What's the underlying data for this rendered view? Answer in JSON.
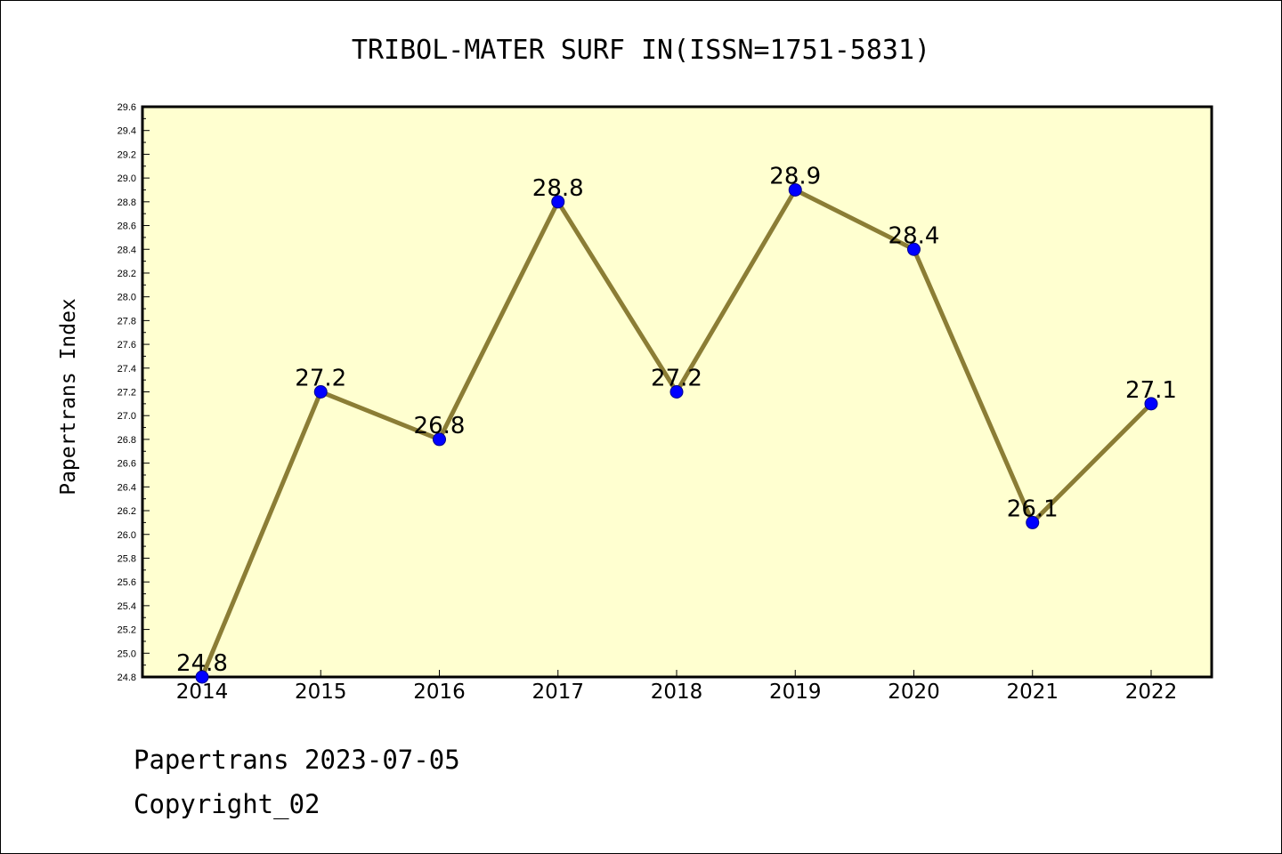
{
  "chart_data": {
    "type": "line",
    "title": "TRIBOL-MATER SURF IN(ISSN=1751-5831)",
    "xlabel": "",
    "ylabel": "Papertrans Index",
    "categories": [
      "2014",
      "2015",
      "2016",
      "2017",
      "2018",
      "2019",
      "2020",
      "2021",
      "2022"
    ],
    "series": [
      {
        "values": [
          24.8,
          27.2,
          26.8,
          28.8,
          27.2,
          28.9,
          28.4,
          26.1,
          27.1
        ]
      }
    ],
    "data_labels": [
      "24.8",
      "27.2",
      "26.8",
      "28.8",
      "27.2",
      "28.9",
      "28.4",
      "26.1",
      "27.1"
    ],
    "ylim": [
      24.8,
      29.6
    ],
    "yticks": [
      "24.8",
      "25.0",
      "25.2",
      "25.4",
      "25.6",
      "25.8",
      "26.0",
      "26.2",
      "26.4",
      "26.6",
      "26.8",
      "27.0",
      "27.2",
      "27.4",
      "27.6",
      "27.8",
      "28.0",
      "28.2",
      "28.4",
      "28.6",
      "28.8",
      "29.0",
      "29.2",
      "29.4",
      "29.6"
    ],
    "grid": false,
    "legend": "none",
    "colors": {
      "plot_background": "#FFFFD0",
      "line": "#8B7D35",
      "marker": "#0000FF"
    }
  },
  "footer": {
    "line1": "Papertrans 2023-07-05",
    "line2": "Copyright_02"
  }
}
